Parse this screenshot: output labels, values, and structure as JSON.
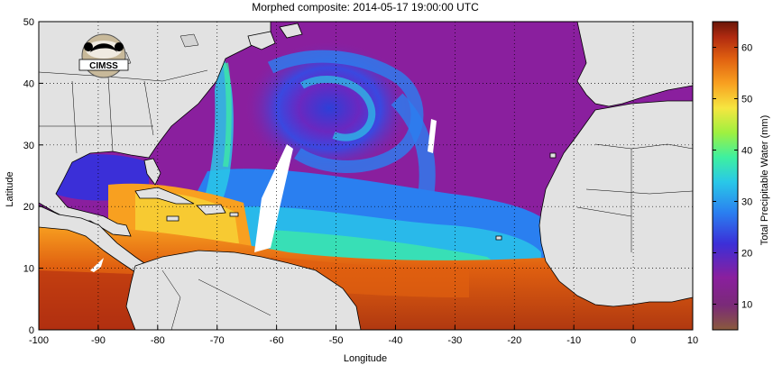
{
  "title": "Morphed composite: 2014-05-17 19:00:00 UTC",
  "logo_text": "CIMSS",
  "x_axis": {
    "label": "Longitude",
    "range": [
      -100,
      10
    ],
    "ticks": [
      "-100",
      "-90",
      "-80",
      "-70",
      "-60",
      "-50",
      "-40",
      "-30",
      "-20",
      "-10",
      "0",
      "10"
    ],
    "tick_values": [
      -100,
      -90,
      -80,
      -70,
      -60,
      -50,
      -40,
      -30,
      -20,
      -10,
      0,
      10
    ]
  },
  "y_axis": {
    "label": "Latitude",
    "range": [
      0,
      50
    ],
    "ticks": [
      "0",
      "10",
      "20",
      "30",
      "40",
      "50"
    ],
    "tick_values": [
      0,
      10,
      20,
      30,
      40,
      50
    ]
  },
  "colorbar": {
    "label": "Total Precipitable Water (mm)",
    "range": [
      5,
      65
    ],
    "ticks": [
      "10",
      "20",
      "30",
      "40",
      "50",
      "60"
    ],
    "tick_values": [
      10,
      20,
      30,
      40,
      50,
      60
    ],
    "colors": [
      "#8a5a3c",
      "#7a2a78",
      "#8a1f9e",
      "#3b2fd8",
      "#2a7ff0",
      "#29c8e8",
      "#3ef0a0",
      "#9ff040",
      "#f6e640",
      "#f8a020",
      "#e06010",
      "#b02a10",
      "#6a1608"
    ]
  },
  "grid": "dotted",
  "map_colors": {
    "land": "#e2e2e2",
    "coast": "#000000",
    "missing": "#ffffff"
  }
}
